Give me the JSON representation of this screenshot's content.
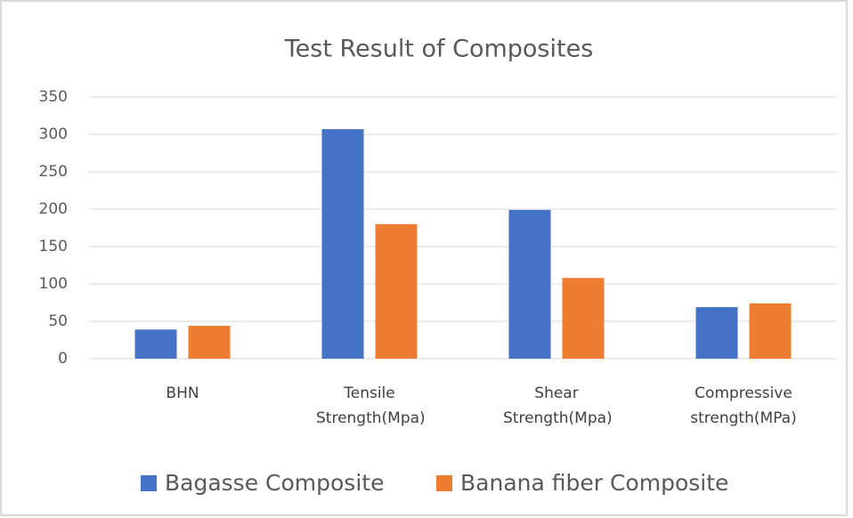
{
  "chart_data": {
    "type": "bar",
    "title": "Test Result of Composites",
    "categories": [
      "BHN",
      "Tensile Strength(Mpa)",
      "Shear Strength(Mpa)",
      "Compressive strength(MPa)"
    ],
    "series": [
      {
        "name": "Bagasse Composite",
        "color": "#4472c4",
        "values": [
          39,
          307,
          199,
          69
        ]
      },
      {
        "name": "Banana fiber Composite",
        "color": "#ed7d31",
        "values": [
          44,
          180,
          108,
          74
        ]
      }
    ],
    "ylim": [
      0,
      350
    ],
    "yticks": [
      0,
      50,
      100,
      150,
      200,
      250,
      300,
      350
    ],
    "grid": true,
    "legend": "bottom"
  }
}
